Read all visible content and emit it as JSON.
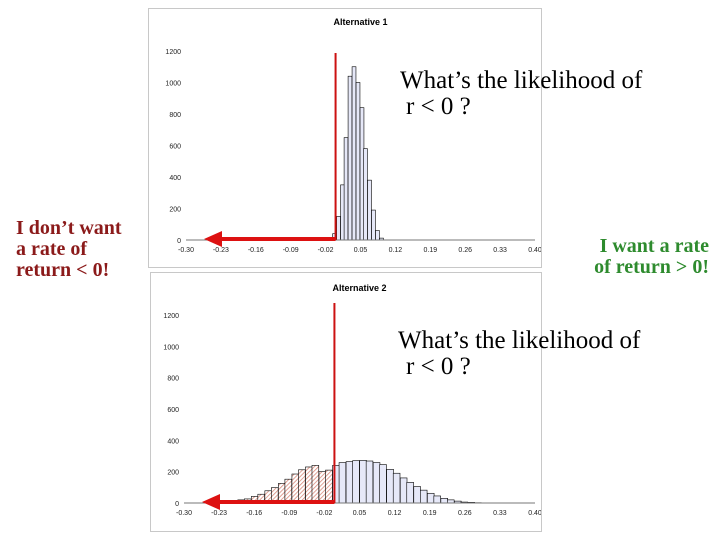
{
  "annotations": {
    "question1_line1": "What’s the likelihood of",
    "question1_line2": "r < 0  ?",
    "question2_line1": "What’s the likelihood of",
    "question2_line2": "r < 0  ?",
    "dont_want_line1": "I don’t want",
    "dont_want_line2": "a rate of",
    "dont_want_line3": "return < 0!",
    "want_line1": "I want a rate",
    "want_line2": "of return > 0!"
  },
  "colors": {
    "bar_fill": "#e6e8f8",
    "bar_stroke": "#000000",
    "loss_hatch": "#d98a7a",
    "zero_line": "#cc1111",
    "arrow": "#dd1111",
    "note_red": "#8b1a1a",
    "note_green": "#2e8b2e"
  },
  "chart_data": [
    {
      "type": "bar",
      "title": "Alternative 1",
      "xlabel": "",
      "ylabel": "",
      "xlim": [
        -0.3,
        0.4
      ],
      "ylim": [
        0,
        1200
      ],
      "x_ticks": [
        "-0.30",
        "-0.23",
        "-0.16",
        "-0.09",
        "-0.02",
        "0.05",
        "0.12",
        "0.19",
        "0.26",
        "0.33",
        "0.40"
      ],
      "y_ticks": [
        "0",
        "200",
        "400",
        "600",
        "800",
        "1000",
        "1200"
      ],
      "bin_width": 0.0078,
      "bins": [
        {
          "x": -0.017,
          "value": 4
        },
        {
          "x": -0.009,
          "value": 10
        },
        {
          "x": -0.002,
          "value": 40
        },
        {
          "x": 0.006,
          "value": 150
        },
        {
          "x": 0.014,
          "value": 350
        },
        {
          "x": 0.021,
          "value": 650
        },
        {
          "x": 0.029,
          "value": 1040
        },
        {
          "x": 0.037,
          "value": 1100
        },
        {
          "x": 0.045,
          "value": 1000
        },
        {
          "x": 0.053,
          "value": 840
        },
        {
          "x": 0.06,
          "value": 580
        },
        {
          "x": 0.068,
          "value": 380
        },
        {
          "x": 0.076,
          "value": 190
        },
        {
          "x": 0.084,
          "value": 60
        },
        {
          "x": 0.092,
          "value": 12
        }
      ],
      "reference_line_x": 0.0,
      "arrow_to_x": -0.3
    },
    {
      "type": "bar",
      "title": "Alternative 2",
      "xlabel": "",
      "ylabel": "",
      "xlim": [
        -0.3,
        0.4
      ],
      "ylim": [
        0,
        1200
      ],
      "x_ticks": [
        "-0.30",
        "-0.23",
        "-0.16",
        "-0.09",
        "-0.02",
        "0.05",
        "0.12",
        "0.19",
        "0.26",
        "0.33",
        "0.40"
      ],
      "y_ticks": [
        "0",
        "200",
        "400",
        "600",
        "800",
        "1000",
        "1200"
      ],
      "bin_width": 0.0135,
      "bins": [
        {
          "x": -0.227,
          "value": 4
        },
        {
          "x": -0.213,
          "value": 10
        },
        {
          "x": -0.2,
          "value": 14
        },
        {
          "x": -0.186,
          "value": 20
        },
        {
          "x": -0.173,
          "value": 26
        },
        {
          "x": -0.159,
          "value": 42
        },
        {
          "x": -0.146,
          "value": 56
        },
        {
          "x": -0.132,
          "value": 78
        },
        {
          "x": -0.119,
          "value": 98
        },
        {
          "x": -0.105,
          "value": 125
        },
        {
          "x": -0.092,
          "value": 152
        },
        {
          "x": -0.078,
          "value": 185
        },
        {
          "x": -0.065,
          "value": 212
        },
        {
          "x": -0.051,
          "value": 230
        },
        {
          "x": -0.038,
          "value": 240
        },
        {
          "x": -0.024,
          "value": 200
        },
        {
          "x": -0.011,
          "value": 210
        },
        {
          "x": 0.003,
          "value": 240
        },
        {
          "x": 0.016,
          "value": 258
        },
        {
          "x": 0.03,
          "value": 264
        },
        {
          "x": 0.043,
          "value": 270
        },
        {
          "x": 0.057,
          "value": 272
        },
        {
          "x": 0.07,
          "value": 268
        },
        {
          "x": 0.084,
          "value": 258
        },
        {
          "x": 0.097,
          "value": 245
        },
        {
          "x": 0.111,
          "value": 215
        },
        {
          "x": 0.124,
          "value": 190
        },
        {
          "x": 0.138,
          "value": 160
        },
        {
          "x": 0.151,
          "value": 132
        },
        {
          "x": 0.165,
          "value": 105
        },
        {
          "x": 0.178,
          "value": 82
        },
        {
          "x": 0.192,
          "value": 62
        },
        {
          "x": 0.205,
          "value": 45
        },
        {
          "x": 0.219,
          "value": 30
        },
        {
          "x": 0.232,
          "value": 20
        },
        {
          "x": 0.246,
          "value": 12
        },
        {
          "x": 0.259,
          "value": 6
        },
        {
          "x": 0.273,
          "value": 4
        },
        {
          "x": 0.286,
          "value": 2
        }
      ],
      "reference_line_x": 0.0,
      "arrow_to_x": -0.3
    }
  ]
}
